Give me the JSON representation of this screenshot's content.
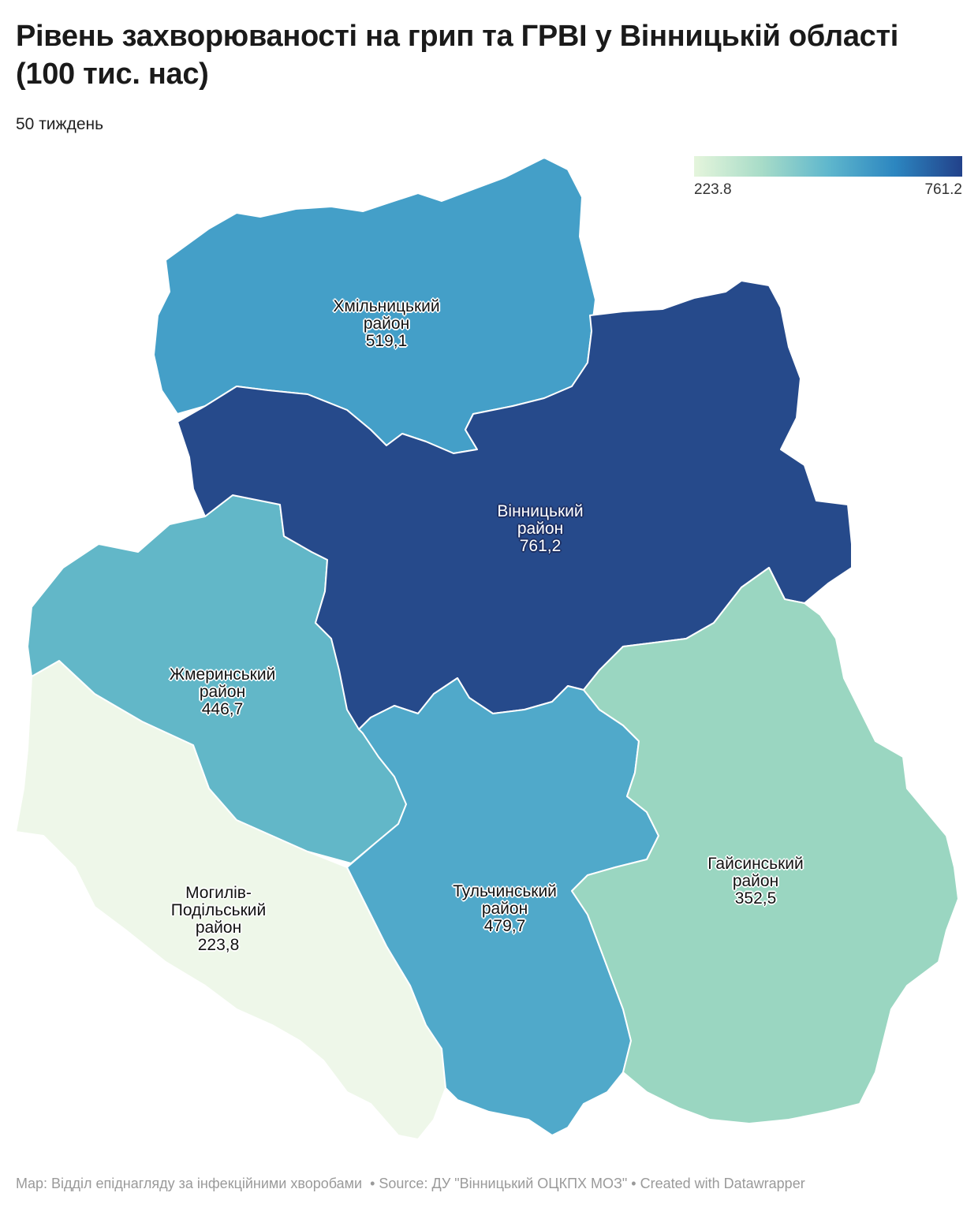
{
  "title": "Рівень захворюваності на грип та ГРВІ у Вінницькій області (100 тис. нас)",
  "subtitle": "50 тиждень",
  "legend": {
    "min_label": "223.8",
    "max_label": "761.2",
    "min_value": 223.8,
    "max_value": 761.2,
    "colors": [
      "#e5f5dc",
      "#a8dcc8",
      "#5fb7cd",
      "#2c86c0",
      "#22418a"
    ]
  },
  "regions": [
    {
      "id": "khmilnytskyi",
      "name_line1": "Хмільницький",
      "name_line2": "район",
      "value_label": "519,1",
      "value": 519.1,
      "color": "#449fc8"
    },
    {
      "id": "vinnytskyi",
      "name_line1": "Вінницький",
      "name_line2": "район",
      "value_label": "761,2",
      "value": 761.2,
      "color": "#264a8b"
    },
    {
      "id": "zhmerynskyi",
      "name_line1": "Жмеринський",
      "name_line2": "район",
      "value_label": "446,7",
      "value": 446.7,
      "color": "#62b7c8"
    },
    {
      "id": "mohyliv",
      "name_line1": "Могилів-",
      "name_line2": "Подільський",
      "name_line3": "район",
      "value_label": "223,8",
      "value": 223.8,
      "color": "#eef7e9"
    },
    {
      "id": "tulchynskyi",
      "name_line1": "Тульчинський",
      "name_line2": "район",
      "value_label": "479,7",
      "value": 479.7,
      "color": "#50a9ca"
    },
    {
      "id": "haisynskyi",
      "name_line1": "Гайсинський",
      "name_line2": "район",
      "value_label": "352,5",
      "value": 352.5,
      "color": "#9ad6c1"
    }
  ],
  "footer": {
    "map_credit": "Map: Відділ епіднагляду за інфекційними хворобами",
    "source": "Source: ДУ \"Вінницький ОЦКПХ МОЗ\"",
    "created_with": "Created with Datawrapper"
  }
}
